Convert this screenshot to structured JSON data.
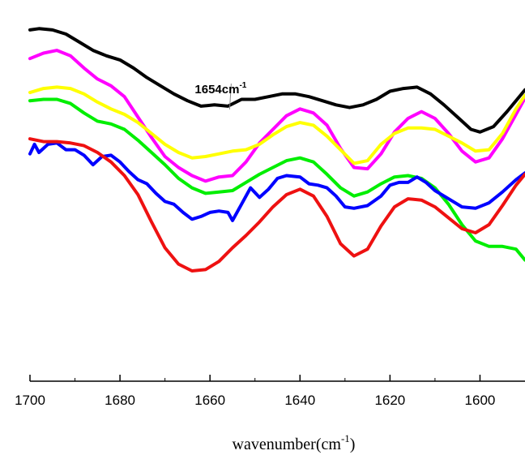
{
  "chart_data": {
    "type": "line",
    "xlabel": "wavenumber(cm",
    "xlabel_sup": "-1",
    "xlabel_suffix": ")",
    "ylabel": "",
    "xlim": [
      1700,
      1590
    ],
    "ylim": [
      0,
      14
    ],
    "x_ticks": [
      1700,
      1680,
      1660,
      1640,
      1620,
      1600
    ],
    "x_tick_labels": [
      "1700",
      "1680",
      "1660",
      "1640",
      "1620",
      "1600"
    ],
    "grid": false,
    "annotation": {
      "text": "1654cm",
      "sup": "-1",
      "points_to_x": 1656,
      "x": 1656,
      "y": 11.05
    },
    "series": [
      {
        "color": "#000000",
        "points": [
          [
            1700,
            12.9
          ],
          [
            1698,
            12.95
          ],
          [
            1695,
            12.9
          ],
          [
            1692,
            12.75
          ],
          [
            1689,
            12.45
          ],
          [
            1686,
            12.15
          ],
          [
            1683,
            11.95
          ],
          [
            1680,
            11.8
          ],
          [
            1677,
            11.5
          ],
          [
            1674,
            11.15
          ],
          [
            1671,
            10.85
          ],
          [
            1668,
            10.55
          ],
          [
            1665,
            10.3
          ],
          [
            1662,
            10.1
          ],
          [
            1659,
            10.15
          ],
          [
            1656,
            10.1
          ],
          [
            1653,
            10.35
          ],
          [
            1650,
            10.35
          ],
          [
            1647,
            10.45
          ],
          [
            1644,
            10.55
          ],
          [
            1641,
            10.55
          ],
          [
            1638,
            10.45
          ],
          [
            1635,
            10.3
          ],
          [
            1632,
            10.15
          ],
          [
            1629,
            10.05
          ],
          [
            1626,
            10.15
          ],
          [
            1623,
            10.35
          ],
          [
            1620,
            10.65
          ],
          [
            1617,
            10.75
          ],
          [
            1614,
            10.8
          ],
          [
            1611,
            10.55
          ],
          [
            1608,
            10.15
          ],
          [
            1605,
            9.7
          ],
          [
            1602,
            9.25
          ],
          [
            1600,
            9.15
          ],
          [
            1597,
            9.35
          ],
          [
            1594,
            9.9
          ],
          [
            1590,
            10.7
          ]
        ]
      },
      {
        "color": "#ff00ff",
        "points": [
          [
            1700,
            11.85
          ],
          [
            1697,
            12.05
          ],
          [
            1694,
            12.15
          ],
          [
            1691,
            11.95
          ],
          [
            1688,
            11.5
          ],
          [
            1685,
            11.1
          ],
          [
            1682,
            10.85
          ],
          [
            1679,
            10.45
          ],
          [
            1676,
            9.7
          ],
          [
            1673,
            8.95
          ],
          [
            1670,
            8.25
          ],
          [
            1667,
            7.85
          ],
          [
            1664,
            7.55
          ],
          [
            1661,
            7.35
          ],
          [
            1658,
            7.5
          ],
          [
            1655,
            7.55
          ],
          [
            1652,
            8.05
          ],
          [
            1649,
            8.75
          ],
          [
            1646,
            9.25
          ],
          [
            1643,
            9.75
          ],
          [
            1640,
            10.0
          ],
          [
            1637,
            9.85
          ],
          [
            1634,
            9.4
          ],
          [
            1631,
            8.55
          ],
          [
            1628,
            7.85
          ],
          [
            1625,
            7.8
          ],
          [
            1622,
            8.35
          ],
          [
            1619,
            9.15
          ],
          [
            1616,
            9.65
          ],
          [
            1613,
            9.9
          ],
          [
            1610,
            9.65
          ],
          [
            1607,
            9.1
          ],
          [
            1604,
            8.45
          ],
          [
            1601,
            8.05
          ],
          [
            1598,
            8.2
          ],
          [
            1595,
            8.9
          ],
          [
            1592,
            9.8
          ],
          [
            1590,
            10.4
          ]
        ]
      },
      {
        "color": "#ffff00",
        "points": [
          [
            1700,
            10.6
          ],
          [
            1697,
            10.75
          ],
          [
            1694,
            10.8
          ],
          [
            1691,
            10.75
          ],
          [
            1688,
            10.55
          ],
          [
            1685,
            10.25
          ],
          [
            1682,
            10.0
          ],
          [
            1679,
            9.8
          ],
          [
            1676,
            9.5
          ],
          [
            1673,
            9.1
          ],
          [
            1670,
            8.7
          ],
          [
            1667,
            8.4
          ],
          [
            1664,
            8.2
          ],
          [
            1661,
            8.25
          ],
          [
            1658,
            8.35
          ],
          [
            1655,
            8.45
          ],
          [
            1652,
            8.5
          ],
          [
            1649,
            8.7
          ],
          [
            1646,
            9.05
          ],
          [
            1643,
            9.35
          ],
          [
            1640,
            9.5
          ],
          [
            1637,
            9.4
          ],
          [
            1634,
            9.0
          ],
          [
            1631,
            8.5
          ],
          [
            1628,
            8.0
          ],
          [
            1625,
            8.1
          ],
          [
            1622,
            8.7
          ],
          [
            1619,
            9.1
          ],
          [
            1616,
            9.3
          ],
          [
            1613,
            9.3
          ],
          [
            1610,
            9.25
          ],
          [
            1607,
            9.0
          ],
          [
            1604,
            8.75
          ],
          [
            1601,
            8.45
          ],
          [
            1598,
            8.5
          ],
          [
            1595,
            9.1
          ],
          [
            1592,
            10.0
          ],
          [
            1590,
            10.5
          ]
        ]
      },
      {
        "color": "#00ee00",
        "points": [
          [
            1700,
            10.3
          ],
          [
            1697,
            10.35
          ],
          [
            1694,
            10.35
          ],
          [
            1691,
            10.2
          ],
          [
            1688,
            9.85
          ],
          [
            1685,
            9.55
          ],
          [
            1682,
            9.45
          ],
          [
            1679,
            9.25
          ],
          [
            1676,
            8.85
          ],
          [
            1673,
            8.4
          ],
          [
            1670,
            7.95
          ],
          [
            1667,
            7.45
          ],
          [
            1664,
            7.1
          ],
          [
            1661,
            6.9
          ],
          [
            1658,
            6.95
          ],
          [
            1655,
            7.0
          ],
          [
            1652,
            7.3
          ],
          [
            1649,
            7.6
          ],
          [
            1646,
            7.85
          ],
          [
            1643,
            8.1
          ],
          [
            1640,
            8.2
          ],
          [
            1637,
            8.05
          ],
          [
            1634,
            7.6
          ],
          [
            1631,
            7.1
          ],
          [
            1628,
            6.8
          ],
          [
            1625,
            6.95
          ],
          [
            1622,
            7.25
          ],
          [
            1619,
            7.5
          ],
          [
            1616,
            7.55
          ],
          [
            1613,
            7.45
          ],
          [
            1610,
            7.1
          ],
          [
            1607,
            6.5
          ],
          [
            1604,
            5.75
          ],
          [
            1601,
            5.15
          ],
          [
            1598,
            4.95
          ],
          [
            1595,
            4.95
          ],
          [
            1592,
            4.85
          ],
          [
            1590,
            4.45
          ]
        ]
      },
      {
        "color": "#0000ff",
        "points": [
          [
            1700,
            8.35
          ],
          [
            1699,
            8.7
          ],
          [
            1698,
            8.4
          ],
          [
            1696,
            8.7
          ],
          [
            1694,
            8.75
          ],
          [
            1692,
            8.5
          ],
          [
            1690,
            8.5
          ],
          [
            1688,
            8.3
          ],
          [
            1686,
            7.95
          ],
          [
            1684,
            8.25
          ],
          [
            1682,
            8.3
          ],
          [
            1680,
            8.05
          ],
          [
            1678,
            7.7
          ],
          [
            1676,
            7.4
          ],
          [
            1674,
            7.25
          ],
          [
            1672,
            6.9
          ],
          [
            1670,
            6.6
          ],
          [
            1668,
            6.5
          ],
          [
            1666,
            6.2
          ],
          [
            1664,
            5.95
          ],
          [
            1662,
            6.05
          ],
          [
            1660,
            6.2
          ],
          [
            1658,
            6.25
          ],
          [
            1656,
            6.2
          ],
          [
            1655,
            5.9
          ],
          [
            1653,
            6.5
          ],
          [
            1651,
            7.1
          ],
          [
            1649,
            6.75
          ],
          [
            1647,
            7.05
          ],
          [
            1645,
            7.45
          ],
          [
            1643,
            7.55
          ],
          [
            1640,
            7.5
          ],
          [
            1638,
            7.25
          ],
          [
            1636,
            7.2
          ],
          [
            1634,
            7.1
          ],
          [
            1632,
            6.8
          ],
          [
            1630,
            6.4
          ],
          [
            1628,
            6.35
          ],
          [
            1625,
            6.45
          ],
          [
            1622,
            6.8
          ],
          [
            1620,
            7.2
          ],
          [
            1618,
            7.3
          ],
          [
            1616,
            7.3
          ],
          [
            1614,
            7.5
          ],
          [
            1612,
            7.3
          ],
          [
            1610,
            7.0
          ],
          [
            1607,
            6.7
          ],
          [
            1604,
            6.4
          ],
          [
            1601,
            6.35
          ],
          [
            1598,
            6.55
          ],
          [
            1595,
            6.95
          ],
          [
            1592,
            7.4
          ],
          [
            1590,
            7.65
          ]
        ]
      },
      {
        "color": "#ee1111",
        "points": [
          [
            1700,
            8.9
          ],
          [
            1697,
            8.8
          ],
          [
            1694,
            8.8
          ],
          [
            1691,
            8.75
          ],
          [
            1688,
            8.65
          ],
          [
            1685,
            8.4
          ],
          [
            1682,
            8.05
          ],
          [
            1679,
            7.55
          ],
          [
            1676,
            6.85
          ],
          [
            1673,
            5.85
          ],
          [
            1670,
            4.9
          ],
          [
            1667,
            4.3
          ],
          [
            1664,
            4.05
          ],
          [
            1661,
            4.1
          ],
          [
            1658,
            4.4
          ],
          [
            1655,
            4.9
          ],
          [
            1652,
            5.35
          ],
          [
            1649,
            5.85
          ],
          [
            1646,
            6.4
          ],
          [
            1643,
            6.85
          ],
          [
            1640,
            7.05
          ],
          [
            1637,
            6.8
          ],
          [
            1634,
            6.05
          ],
          [
            1631,
            5.05
          ],
          [
            1628,
            4.6
          ],
          [
            1625,
            4.85
          ],
          [
            1622,
            5.7
          ],
          [
            1619,
            6.4
          ],
          [
            1616,
            6.7
          ],
          [
            1613,
            6.65
          ],
          [
            1610,
            6.4
          ],
          [
            1607,
            6.0
          ],
          [
            1604,
            5.6
          ],
          [
            1601,
            5.45
          ],
          [
            1598,
            5.75
          ],
          [
            1595,
            6.45
          ],
          [
            1592,
            7.2
          ],
          [
            1590,
            7.6
          ]
        ]
      }
    ]
  }
}
